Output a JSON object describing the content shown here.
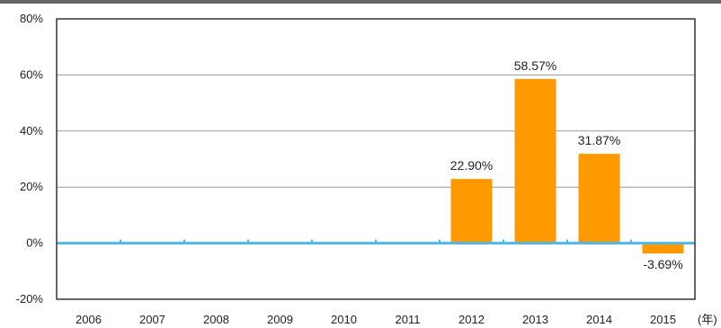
{
  "chart_data": {
    "type": "bar",
    "title": "",
    "xlabel": "",
    "ylabel": "",
    "x_unit_label": "(年)",
    "categories": [
      "2006",
      "2007",
      "2008",
      "2009",
      "2010",
      "2011",
      "2012",
      "2013",
      "2014",
      "2015"
    ],
    "values": [
      null,
      null,
      null,
      null,
      null,
      null,
      22.9,
      58.57,
      31.87,
      -3.69
    ],
    "value_labels": [
      "",
      "",
      "",
      "",
      "",
      "",
      "22.90%",
      "58.57%",
      "31.87%",
      "-3.69%"
    ],
    "yticks": [
      80,
      60,
      40,
      20,
      0,
      -20
    ],
    "ytick_labels": [
      "80%",
      "60%",
      "40%",
      "20%",
      "0%",
      "-20%"
    ],
    "ylim": [
      -20,
      80
    ],
    "grid": true,
    "legend": "none",
    "colors": {
      "bar": "#ff9900",
      "zero_line": "#4fb8e8",
      "grid": "#999999",
      "frame": "#333333",
      "top_rule": "#666666"
    }
  }
}
